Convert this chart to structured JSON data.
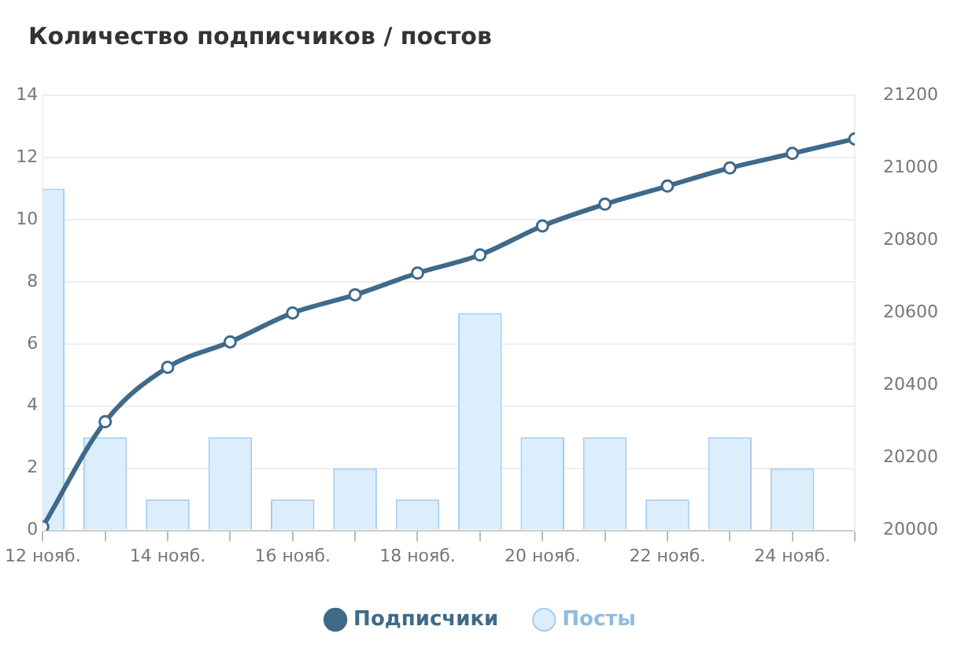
{
  "chart_data": {
    "type": "bar",
    "title": "Количество подписчиков / постов",
    "x": [
      "--11-12",
      "--11-13",
      "--11-14",
      "--11-15",
      "--11-16",
      "--11-17",
      "--11-18",
      "--11-19",
      "--11-20",
      "--11-21",
      "--11-22",
      "--11-23",
      "--11-24",
      "--11-25"
    ],
    "xlim": [
      "--11-12",
      "--11-25"
    ],
    "xticks": [
      {
        "value": "--11-12",
        "label": "12 нояб."
      },
      {
        "value": "--11-13",
        "label": null
      },
      {
        "value": "--11-14",
        "label": "14 нояб."
      },
      {
        "value": "--11-15",
        "label": null
      },
      {
        "value": "--11-16",
        "label": "16 нояб."
      },
      {
        "value": "--11-17",
        "label": null
      },
      {
        "value": "--11-18",
        "label": "18 нояб."
      },
      {
        "value": "--11-19",
        "label": null
      },
      {
        "value": "--11-20",
        "label": "20 нояб."
      },
      {
        "value": "--11-21",
        "label": null
      },
      {
        "value": "--11-22",
        "label": "22 нояб."
      },
      {
        "value": "--11-23",
        "label": null
      },
      {
        "value": "--11-24",
        "label": "24 нояб."
      },
      {
        "value": "--11-25",
        "label": null
      }
    ],
    "series": [
      {
        "name": "Подписчики",
        "type": "line",
        "axis": "y2",
        "color": "#3f6a8a",
        "values": [
          20010,
          20300,
          20450,
          20520,
          20600,
          20650,
          20710,
          20760,
          20840,
          20900,
          20950,
          21000,
          21040,
          21080
        ]
      },
      {
        "name": "Посты",
        "color": "#dcedfb",
        "values": [
          11,
          3,
          1,
          3,
          1,
          2,
          1,
          7,
          3,
          3,
          1,
          3,
          2,
          null
        ]
      }
    ],
    "ylim": [
      0,
      14
    ],
    "yticks": [
      0,
      2,
      4,
      6,
      8,
      10,
      12,
      14
    ],
    "y2lim": [
      20000,
      21200
    ],
    "y2ticks": [
      20000,
      20200,
      20400,
      20600,
      20800,
      21000,
      21200
    ],
    "grid": "y",
    "legend": "bottom",
    "marker": "circle",
    "line_style": "solid"
  }
}
